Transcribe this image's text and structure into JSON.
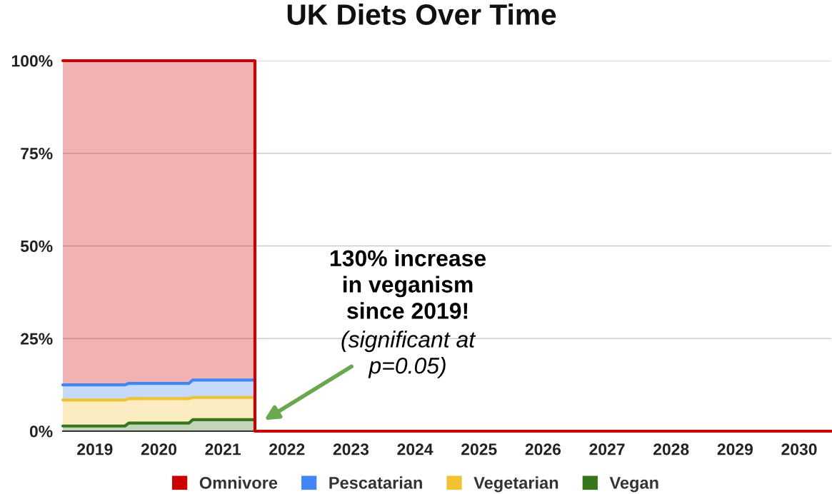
{
  "chart_data": {
    "type": "area",
    "title": "UK Diets Over Time",
    "x": [
      2018.5,
      2019.47,
      2019.53,
      2020.47,
      2020.53,
      2021.5,
      2021.5,
      2030.5
    ],
    "stacked": true,
    "series": [
      {
        "name": "Vegan",
        "color": "#38761d",
        "values": [
          1.4,
          1.4,
          2.2,
          2.2,
          3.1,
          3.1,
          null,
          null
        ]
      },
      {
        "name": "Vegetarian",
        "color": "#f1c232",
        "values": [
          7.0,
          7.0,
          6.6,
          6.6,
          6.0,
          6.0,
          null,
          null
        ]
      },
      {
        "name": "Pescatarian",
        "color": "#4285f4",
        "values": [
          4.1,
          4.1,
          4.1,
          4.1,
          4.7,
          4.7,
          null,
          null
        ]
      },
      {
        "name": "Omnivore",
        "color": "#cc0000",
        "values": [
          87.5,
          87.5,
          87.1,
          87.1,
          86.2,
          86.2,
          0,
          0
        ]
      }
    ],
    "xlim": [
      2018.5,
      2030.5
    ],
    "xticks": [
      2019,
      2020,
      2021,
      2022,
      2023,
      2024,
      2025,
      2026,
      2027,
      2028,
      2029,
      2030
    ],
    "ylim": [
      0,
      100
    ],
    "yticks": [
      {
        "value": 0,
        "label": "0%"
      },
      {
        "value": 25,
        "label": "25%"
      },
      {
        "value": 50,
        "label": "50%"
      },
      {
        "value": 75,
        "label": "75%"
      },
      {
        "value": 100,
        "label": "100%"
      }
    ],
    "grid": "y",
    "legend": "bottom",
    "annotations": [
      "130% increase\nin veganism\nsince 2019!",
      "(significant at\np=0.05)"
    ]
  }
}
